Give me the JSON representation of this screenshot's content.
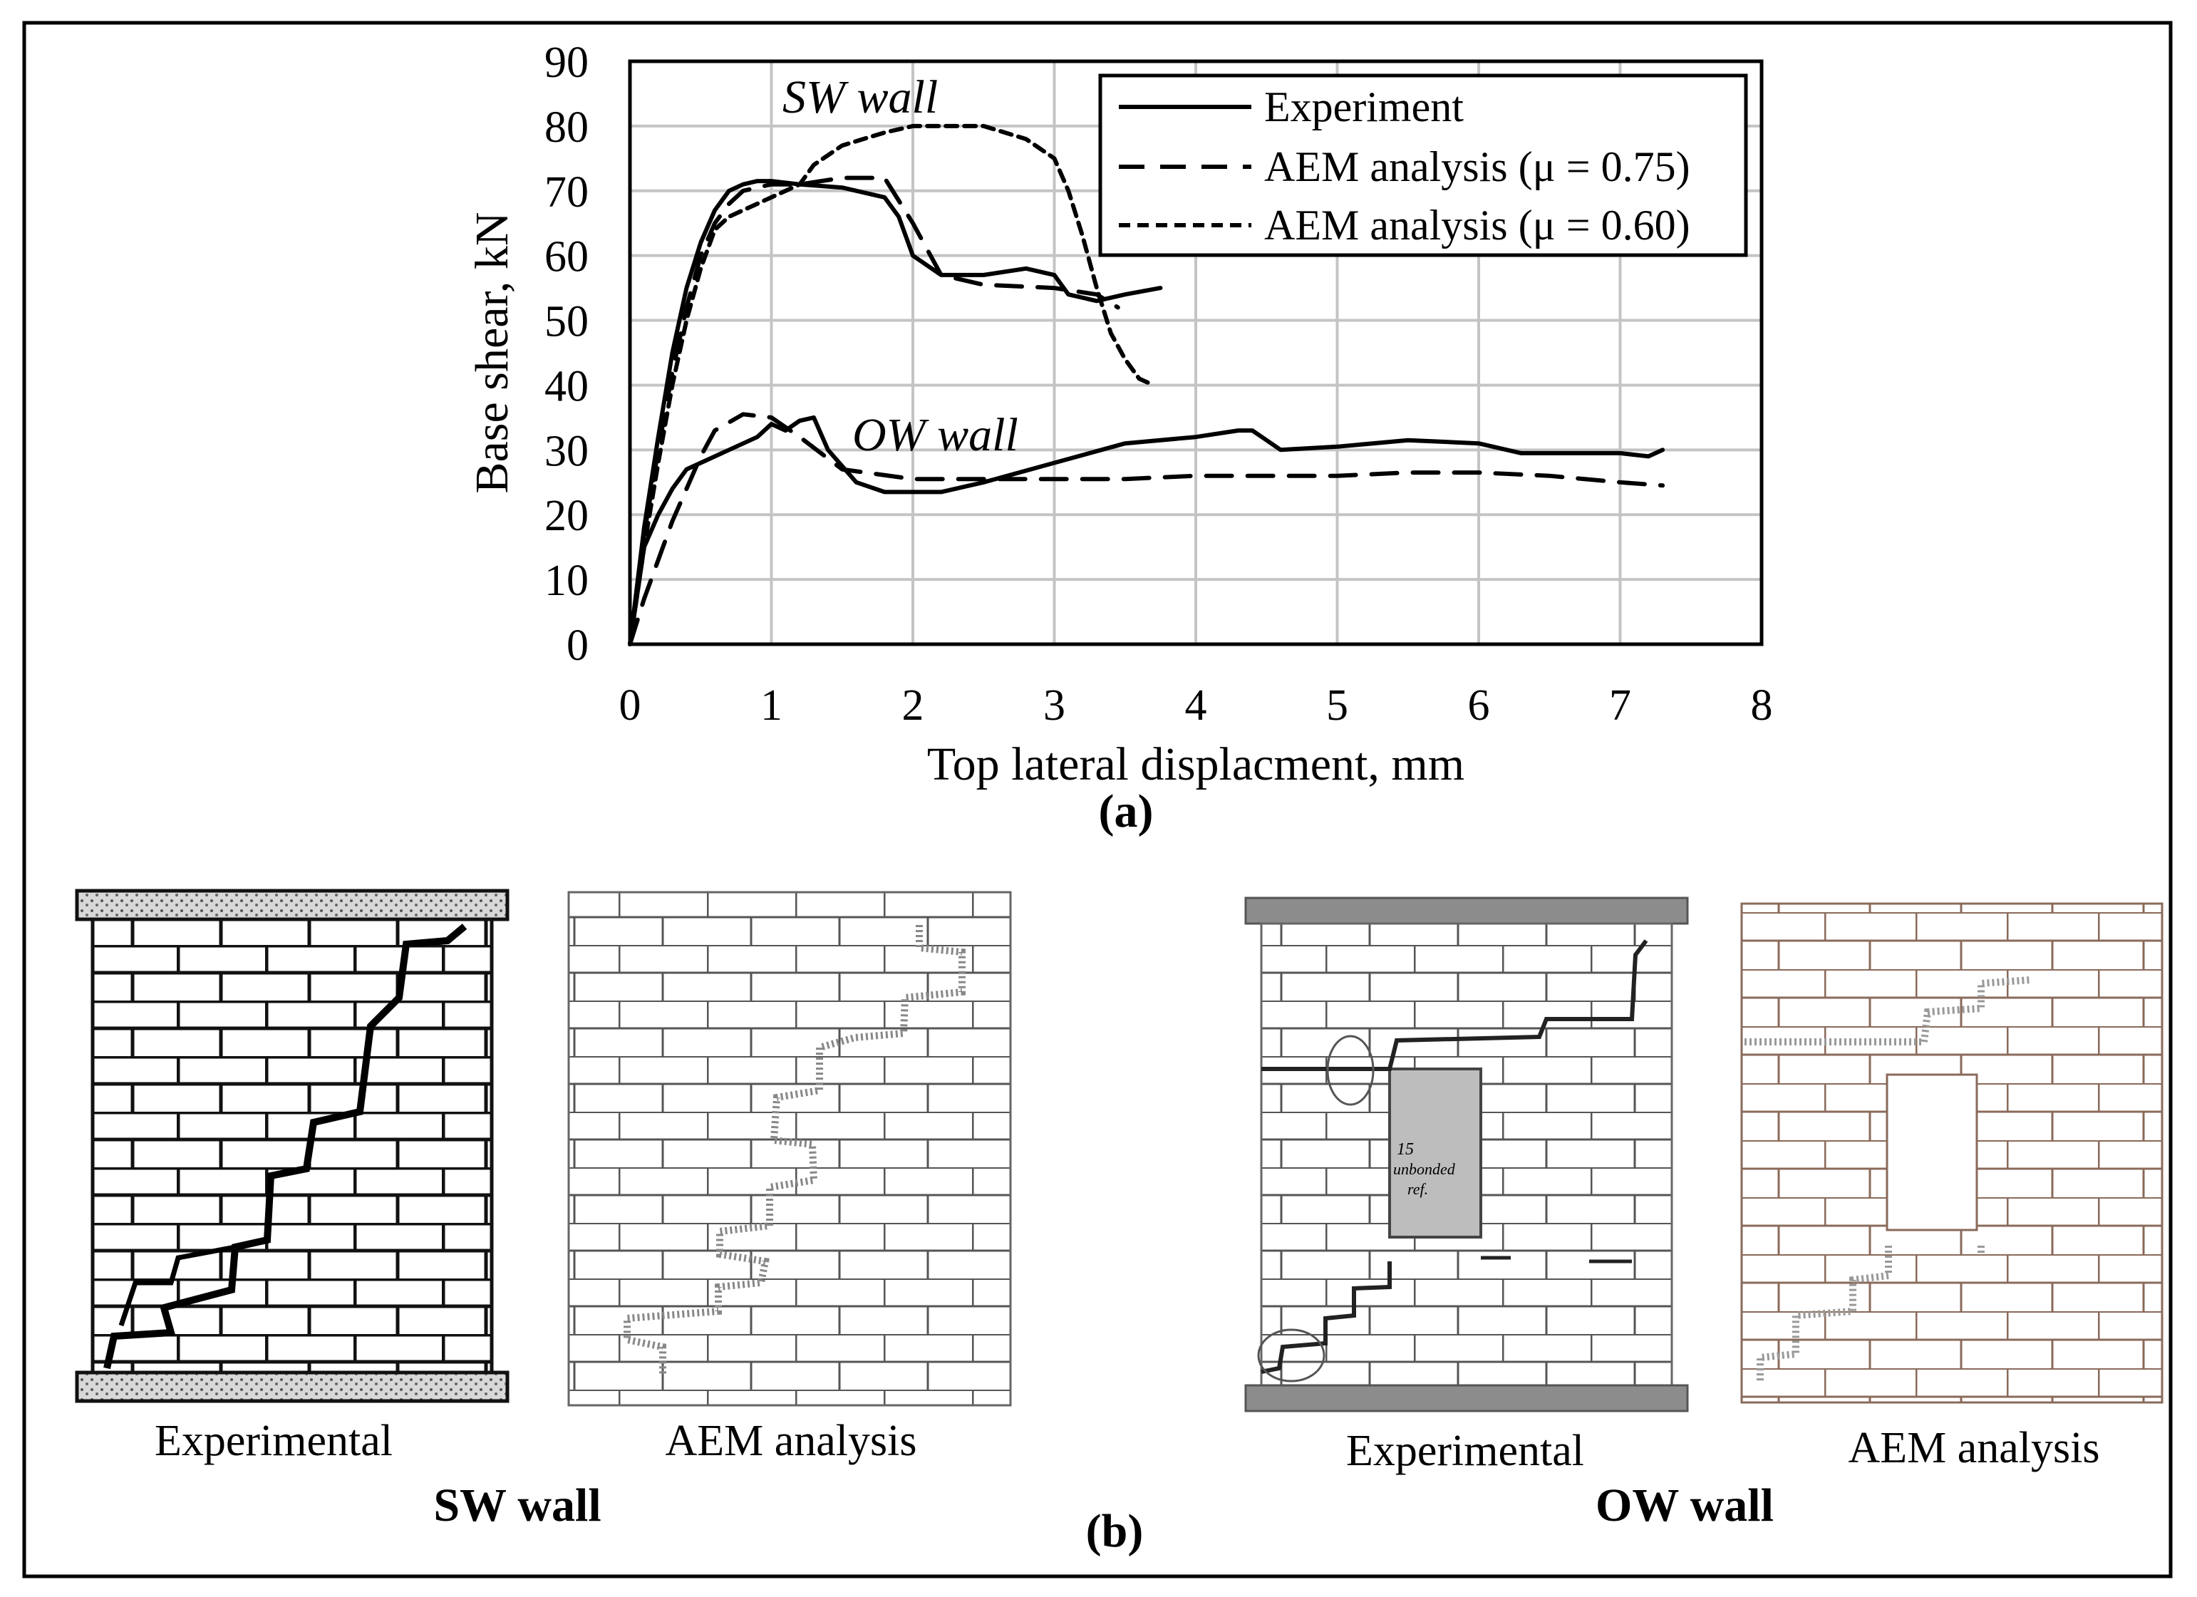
{
  "chart_data": {
    "type": "line",
    "title": "",
    "xlabel": "Top lateral displacment, mm",
    "ylabel": "Base shear, kN",
    "xlim": [
      0,
      8
    ],
    "ylim": [
      0,
      90
    ],
    "x_ticks": [
      "0",
      "1",
      "2",
      "3",
      "4",
      "5",
      "6",
      "7",
      "8"
    ],
    "y_ticks": [
      "0",
      "10",
      "20",
      "30",
      "40",
      "50",
      "60",
      "70",
      "80",
      "90"
    ],
    "grid": true,
    "legend_position": "top-right",
    "legend": [
      {
        "label": "Experiment",
        "style": "solid"
      },
      {
        "label": "AEM analysis (μ = 0.75)",
        "style": "long-dash"
      },
      {
        "label": "AEM analysis (μ = 0.60)",
        "style": "short-dash"
      }
    ],
    "annotations": [
      "SW wall",
      "OW wall"
    ],
    "series": [
      {
        "name": "SW wall - Experiment",
        "style": "solid",
        "x": [
          0,
          0.1,
          0.2,
          0.3,
          0.4,
          0.5,
          0.6,
          0.7,
          0.8,
          0.9,
          1.0,
          1.2,
          1.5,
          1.8,
          1.9,
          2.0,
          2.2,
          2.5,
          2.8,
          3.0,
          3.1,
          3.3,
          3.5,
          3.75
        ],
        "y": [
          0,
          18,
          32,
          45,
          55,
          62,
          67,
          70,
          71,
          71.5,
          71.5,
          71,
          70.5,
          69,
          66,
          60,
          57,
          57,
          58,
          57,
          54,
          53,
          54,
          55
        ]
      },
      {
        "name": "SW wall - AEM analysis (μ = 0.75)",
        "style": "long-dash",
        "x": [
          0,
          0.1,
          0.2,
          0.3,
          0.4,
          0.5,
          0.6,
          0.7,
          0.8,
          1.0,
          1.2,
          1.5,
          1.8,
          2.0,
          2.2,
          2.5,
          3.0,
          3.3,
          3.45
        ],
        "y": [
          0,
          17,
          30,
          42,
          52,
          60,
          65,
          68,
          70,
          71,
          71,
          72,
          72,
          65,
          57,
          55.5,
          55,
          54,
          52
        ]
      },
      {
        "name": "SW wall - AEM analysis (μ = 0.60)",
        "style": "short-dash",
        "x": [
          0,
          0.1,
          0.2,
          0.3,
          0.4,
          0.5,
          0.6,
          0.7,
          0.8,
          1.0,
          1.2,
          1.3,
          1.5,
          1.8,
          2.0,
          2.2,
          2.5,
          2.8,
          3.0,
          3.1,
          3.2,
          3.3,
          3.4,
          3.5,
          3.6,
          3.7
        ],
        "y": [
          0,
          15,
          28,
          40,
          50,
          58,
          64,
          66,
          67,
          69,
          71,
          74,
          77,
          79,
          80,
          80,
          80,
          78,
          75,
          70,
          63,
          55,
          48,
          44,
          41,
          40
        ]
      },
      {
        "name": "OW wall - Experiment",
        "style": "solid",
        "x": [
          0,
          0.1,
          0.2,
          0.3,
          0.4,
          0.5,
          0.7,
          0.9,
          1.0,
          1.1,
          1.2,
          1.3,
          1.4,
          1.6,
          1.8,
          2.0,
          2.2,
          2.5,
          3.0,
          3.5,
          4.0,
          4.3,
          4.4,
          4.5,
          4.6,
          5.0,
          5.5,
          6.0,
          6.3,
          6.5,
          7.0,
          7.2,
          7.3
        ],
        "y": [
          0,
          15,
          20,
          24,
          27,
          28,
          30,
          32,
          34,
          33,
          34.5,
          35,
          30,
          25,
          23.5,
          23.5,
          23.5,
          25,
          28,
          31,
          32,
          33,
          33,
          31.5,
          30,
          30.5,
          31.5,
          31,
          29.5,
          29.5,
          29.5,
          29,
          30
        ]
      },
      {
        "name": "OW wall - AEM analysis (μ = 0.75)",
        "style": "long-dash",
        "x": [
          0,
          0.1,
          0.2,
          0.3,
          0.4,
          0.5,
          0.6,
          0.8,
          1.0,
          1.2,
          1.5,
          2.0,
          2.5,
          3.0,
          3.5,
          4.0,
          4.5,
          5.0,
          5.5,
          6.0,
          6.5,
          7.0,
          7.3
        ],
        "y": [
          0,
          7,
          13,
          19,
          24,
          29,
          33,
          35.5,
          35,
          32,
          27,
          25.5,
          25.5,
          25.5,
          25.5,
          26,
          26,
          26,
          26.5,
          26.5,
          26,
          25,
          24.5
        ]
      }
    ]
  },
  "figure": {
    "caption_a": "(a)",
    "caption_b": "(b)",
    "sw_group_title": "SW wall",
    "ow_group_title": "OW wall",
    "panels": [
      {
        "label": "Experimental"
      },
      {
        "label": "AEM analysis"
      },
      {
        "label": "Experimental"
      },
      {
        "label": "AEM analysis"
      }
    ],
    "handwritten_notes": {
      "note_15": "15",
      "note_unbonded": "unbonded",
      "note_ref": "ref."
    }
  }
}
